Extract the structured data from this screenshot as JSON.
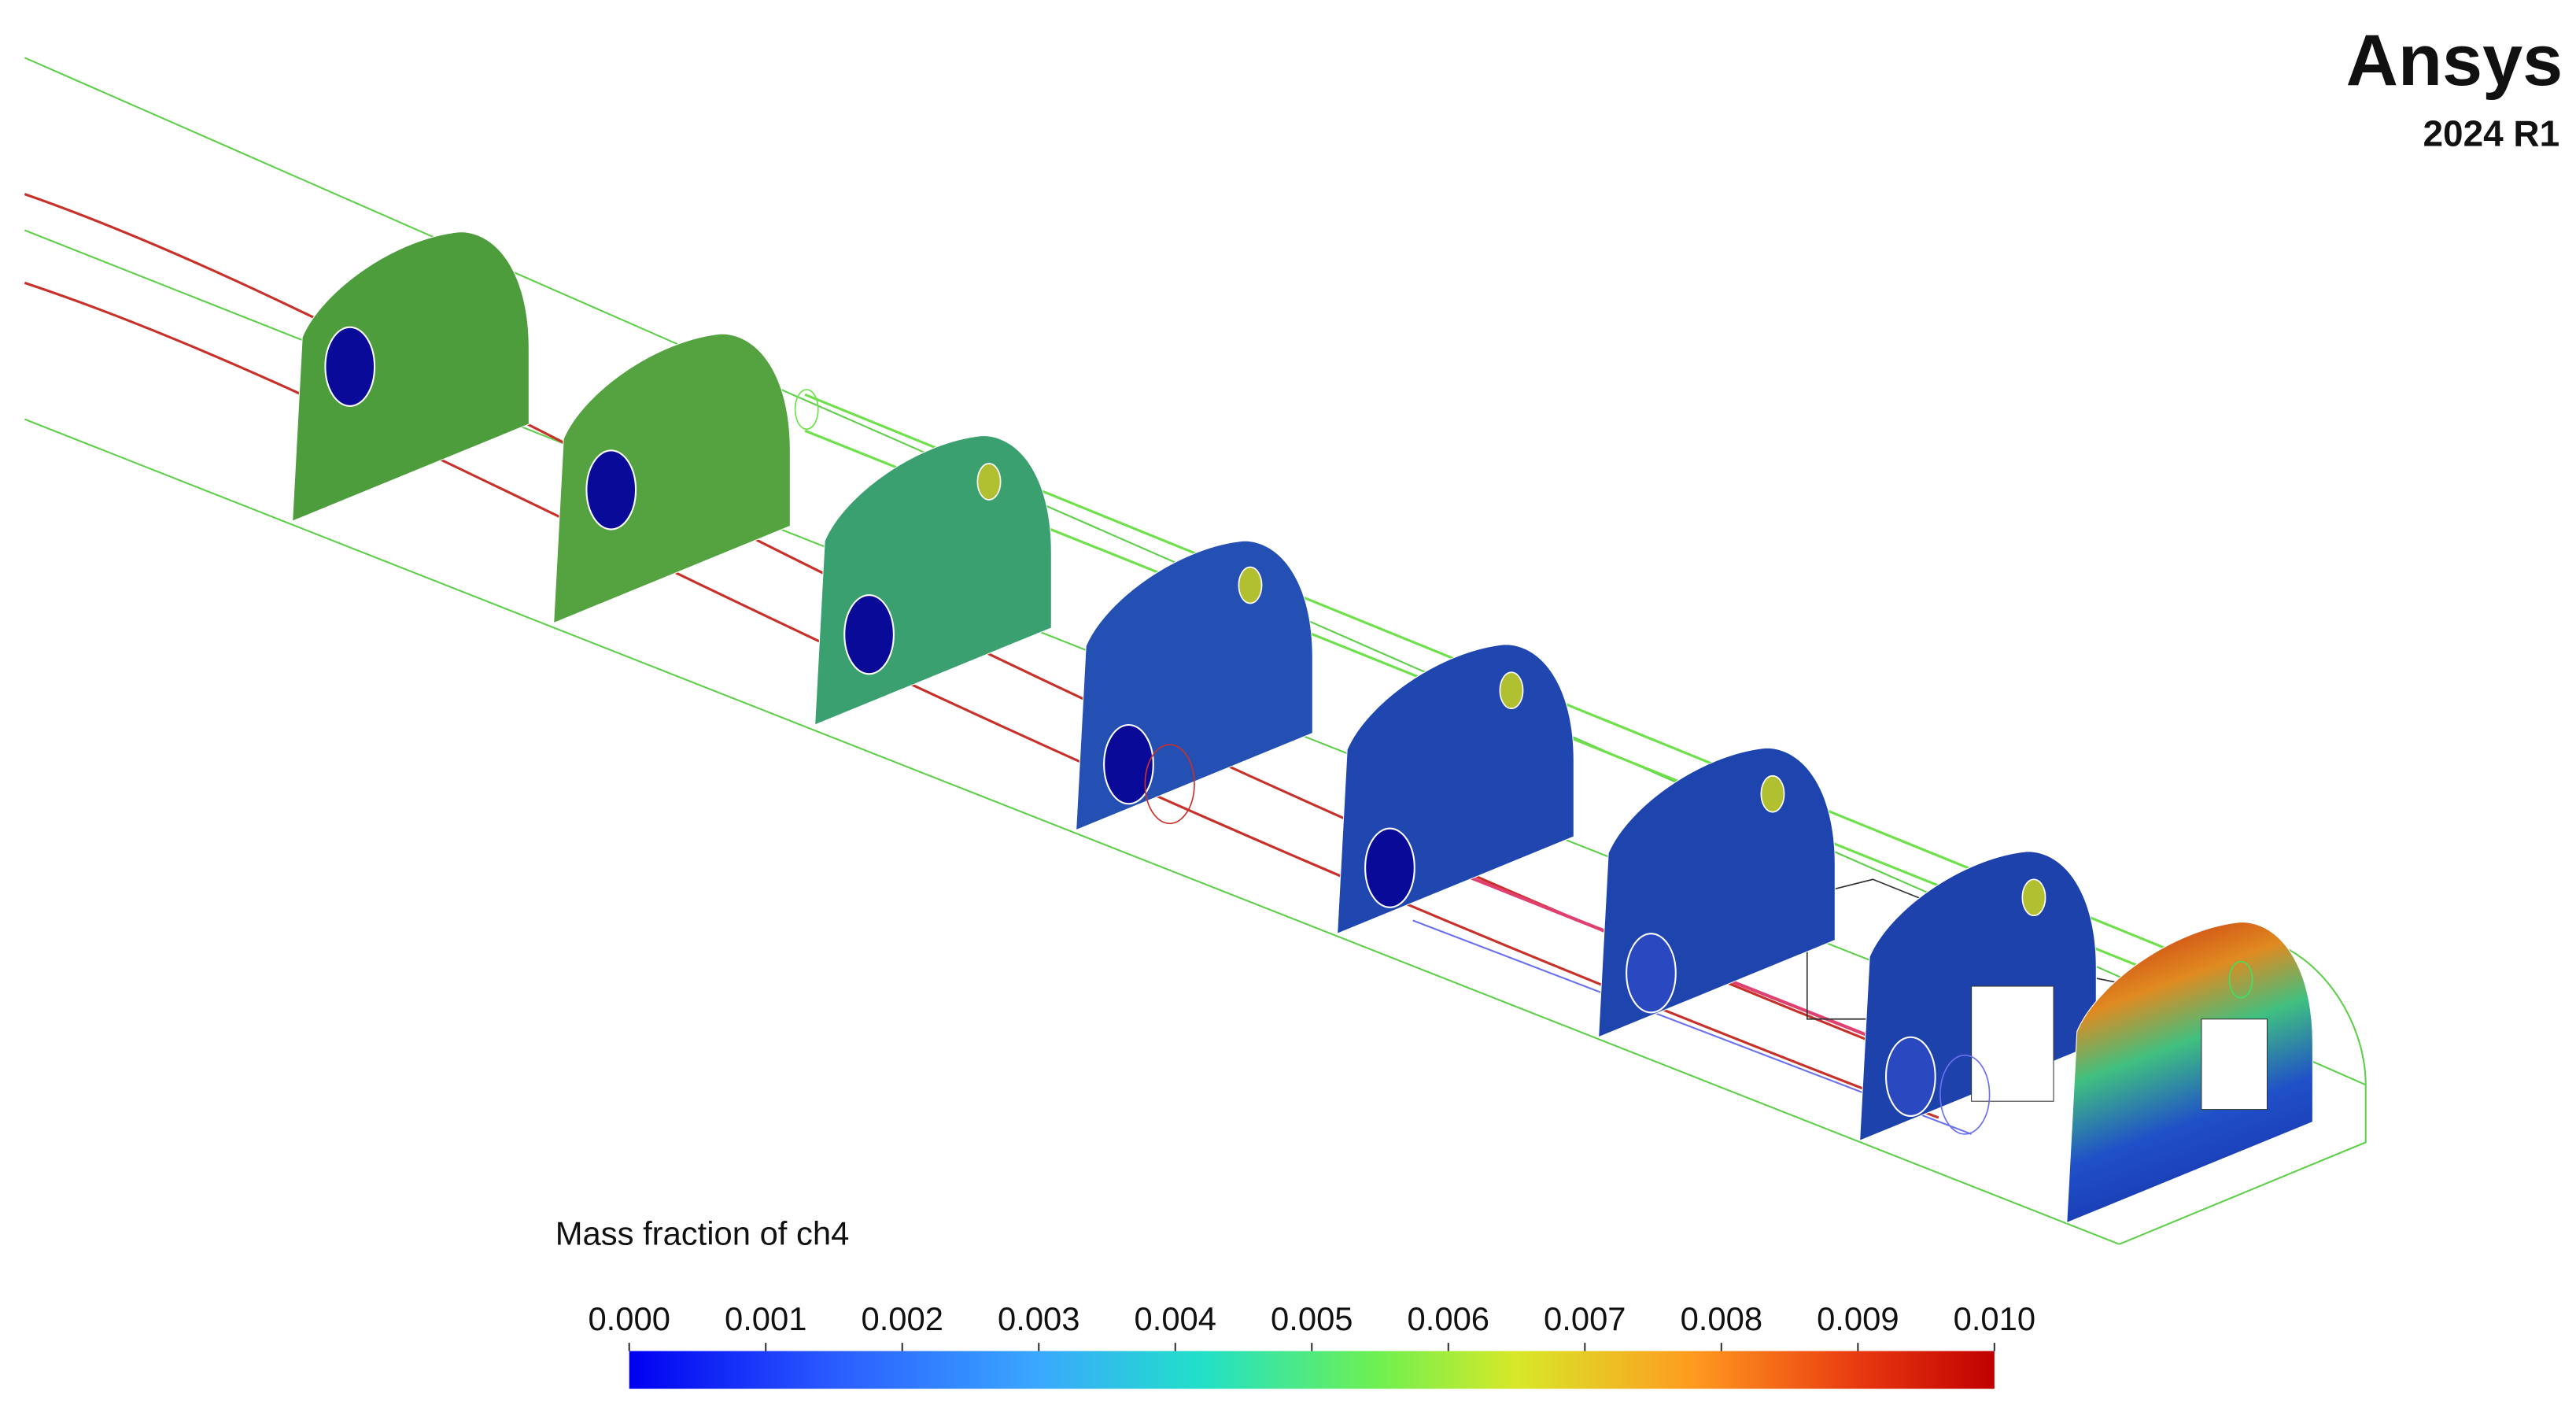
{
  "branding": {
    "product": "Ansys",
    "version": "2024 R1"
  },
  "colorbar": {
    "title": "Mass fraction of ch4",
    "ticks": [
      {
        "value": 0,
        "label": "0.000"
      },
      {
        "value": 0.001,
        "label": "0.001"
      },
      {
        "value": 0.002,
        "label": "0.002"
      },
      {
        "value": 0.003,
        "label": "0.003"
      },
      {
        "value": 0.004,
        "label": "0.004"
      },
      {
        "value": 0.005,
        "label": "0.005"
      },
      {
        "value": 0.006,
        "label": "0.006"
      },
      {
        "value": 0.007,
        "label": "0.007"
      },
      {
        "value": 0.008,
        "label": "0.008"
      },
      {
        "value": 0.009,
        "label": "0.009"
      },
      {
        "value": 0.01,
        "label": "0.010"
      }
    ]
  }
}
